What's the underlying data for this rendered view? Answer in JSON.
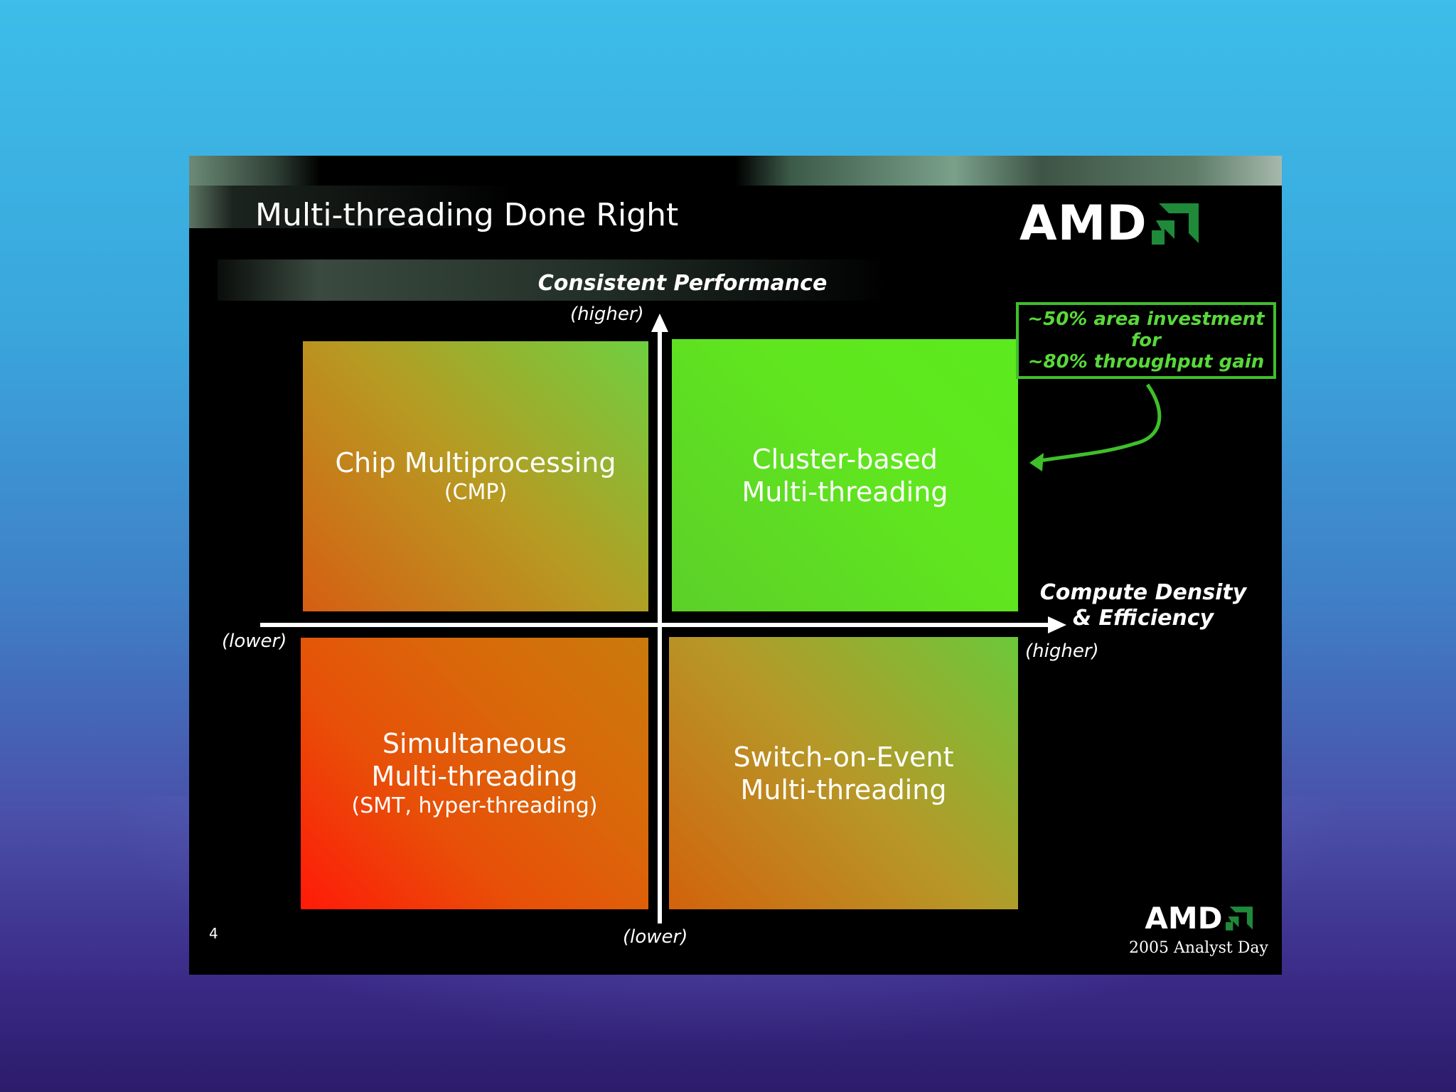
{
  "slide": {
    "title": "Multi-threading Done Right",
    "brand": "AMD",
    "page_number": "4",
    "footer_brand": "AMD",
    "footer_event": "2005 Analyst Day"
  },
  "axes": {
    "y_title": "Consistent Performance",
    "y_high": "(higher)",
    "y_low": "(lower)",
    "x_title_line1": "Compute Density",
    "x_title_line2": "& Efficiency",
    "x_high": "(higher)",
    "x_low": "(lower)"
  },
  "quadrants": {
    "top_left": {
      "main": "Chip Multiprocessing",
      "sub": "(CMP)"
    },
    "top_right": {
      "main": "Cluster-based\nMulti-threading",
      "sub": ""
    },
    "bottom_left": {
      "main": "Simultaneous\nMulti-threading",
      "sub": "(SMT, hyper-threading)"
    },
    "bottom_right": {
      "main": "Switch-on-Event\nMulti-threading",
      "sub": ""
    }
  },
  "callout": {
    "line1": "~50% area investment",
    "line2": "for",
    "line3": "~80% throughput gain"
  },
  "colors": {
    "callout_green": "#3fbf2a",
    "logo_green": "#1f8a3a",
    "background_black": "#000000"
  },
  "icons": [
    "amd-arrow-logo-icon"
  ]
}
